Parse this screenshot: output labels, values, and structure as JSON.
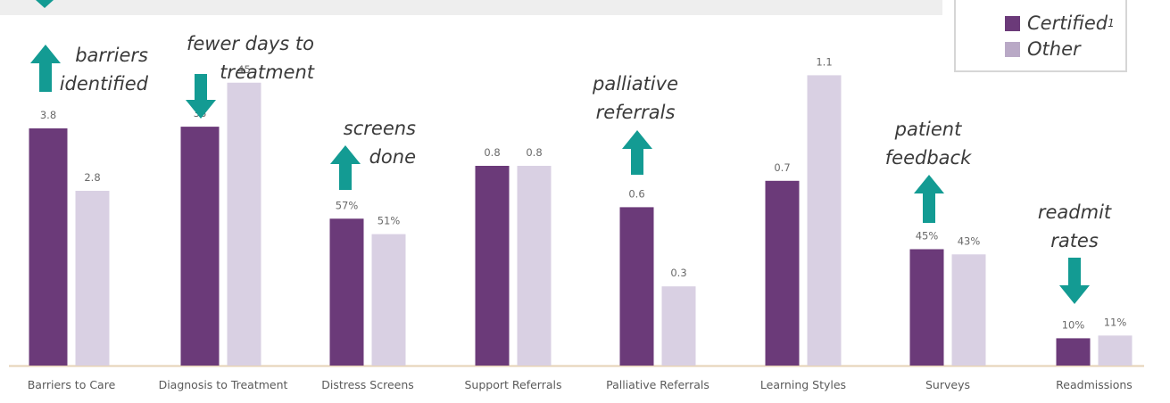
{
  "legend": {
    "certified_label": "Certified",
    "certified_sup": "1",
    "other_label": "Other"
  },
  "colors": {
    "certified": "#6b3a79",
    "other": "#d9d0e3",
    "arrow": "#139b93",
    "baseline": "#e6d2b6",
    "band": "#eeeeee"
  },
  "chart_data": {
    "type": "bar",
    "categories": [
      "Barriers to Care",
      "Diagnosis to Treatment",
      "Distress Screens",
      "Support Referrals",
      "Palliative Referrals",
      "Learning Styles",
      "Surveys",
      "Readmissions"
    ],
    "series": [
      {
        "name": "Certified",
        "values": [
          3.8,
          38,
          57,
          0.8,
          0.6,
          0.7,
          45,
          10
        ],
        "labels": [
          "3.8",
          "38",
          "57%",
          "0.8",
          "0.6",
          "0.7",
          "45%",
          "10%"
        ]
      },
      {
        "name": "Other",
        "values": [
          2.8,
          45,
          51,
          0.8,
          0.3,
          1.1,
          43,
          11
        ],
        "labels": [
          "2.8",
          "45",
          "51%",
          "0.8",
          "0.3",
          "1.1",
          "43%",
          "11%"
        ]
      }
    ],
    "legend_position": "top-right",
    "grid": false,
    "annotations": [
      {
        "lines": [
          "barriers",
          "identified"
        ],
        "arrow": "up"
      },
      {
        "lines": [
          "fewer days to",
          "treatment"
        ],
        "arrow": "down"
      },
      {
        "lines": [
          "screens",
          "done"
        ],
        "arrow": "up"
      },
      {
        "lines": [
          "palliative",
          "referrals"
        ],
        "arrow": "up"
      },
      {
        "lines": [
          "patient",
          "feedback"
        ],
        "arrow": "up"
      },
      {
        "lines": [
          "readmit",
          "rates"
        ],
        "arrow": "down"
      }
    ]
  }
}
